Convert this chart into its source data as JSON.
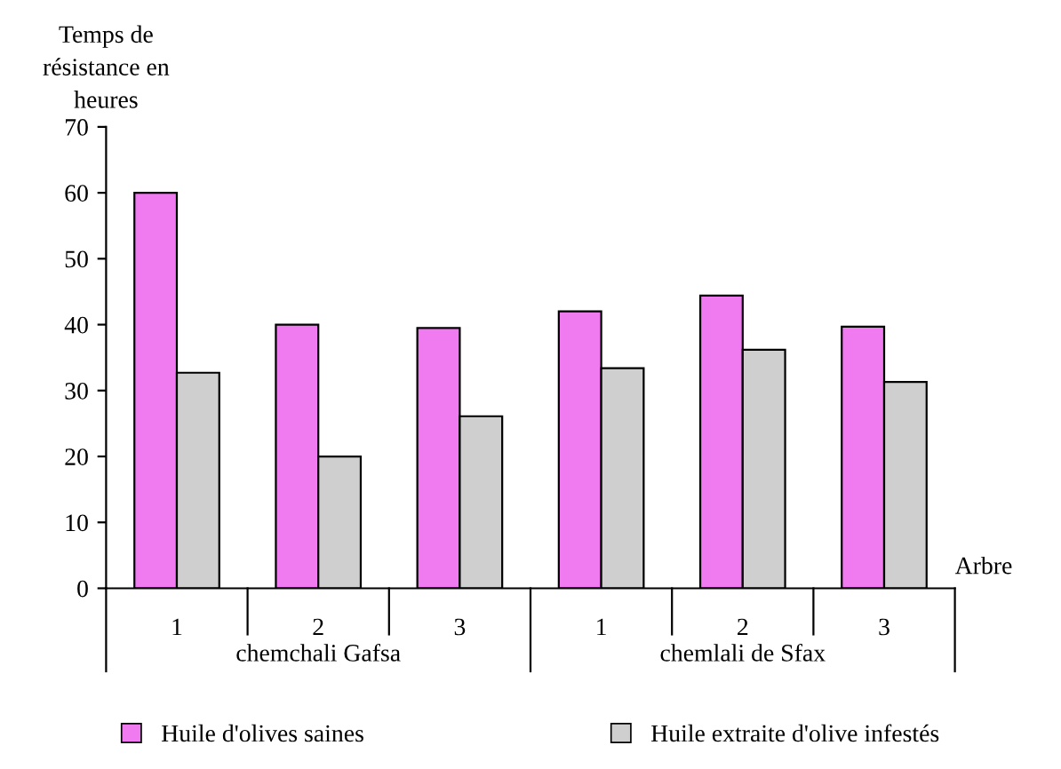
{
  "chart_data": {
    "type": "bar",
    "ylabel": "Temps de\nrésistance en\nheures",
    "xlabel": "Arbre",
    "categories": [
      "1",
      "2",
      "3",
      "1",
      "2",
      "3"
    ],
    "series": [
      {
        "name": "Huile d'olives saines",
        "color": "#f07af0",
        "values": [
          60,
          40,
          39.5,
          42,
          44.4,
          39.7
        ]
      },
      {
        "name": "Huile extraite d'olive infestés",
        "color": "#cfcfcf",
        "values": [
          32.7,
          20,
          26.1,
          33.4,
          36.2,
          31.3
        ]
      }
    ],
    "annotations": [
      "chemchali Gafsa",
      "chemlali de Sfax"
    ],
    "ylim": [
      0,
      70
    ],
    "yticks": [
      0,
      10,
      20,
      30,
      40,
      50,
      60,
      70
    ],
    "grid": false,
    "legend": "bottom"
  }
}
